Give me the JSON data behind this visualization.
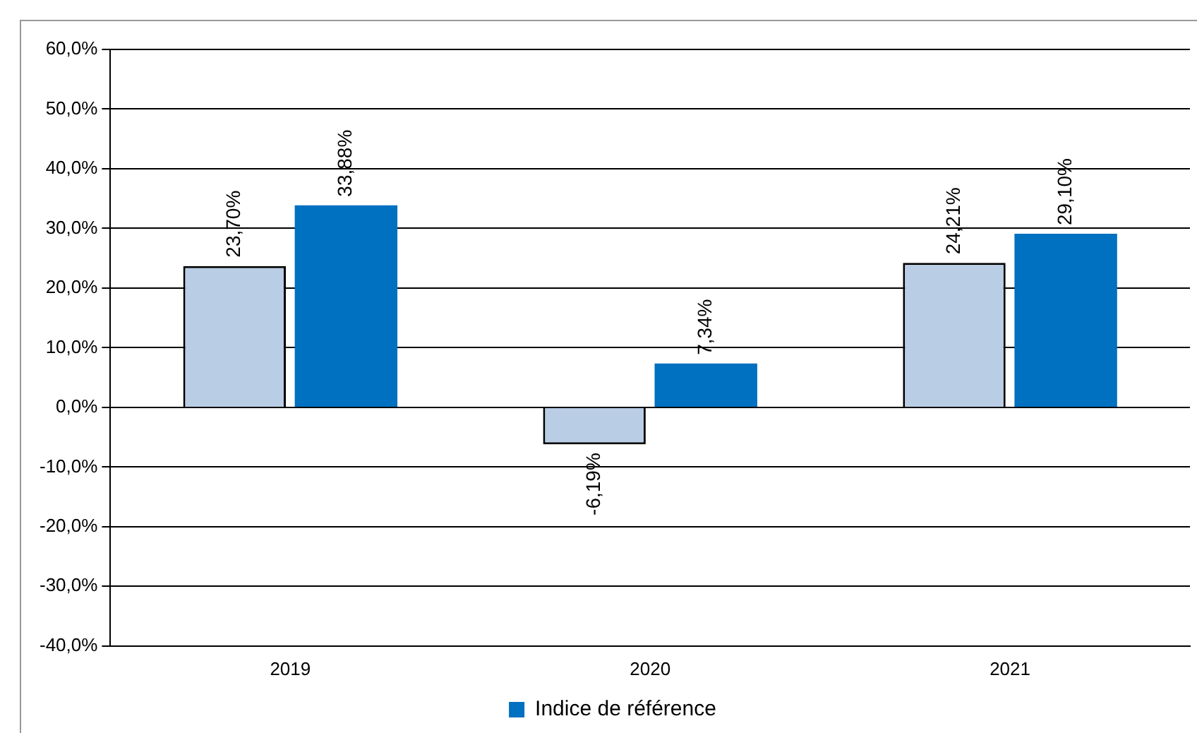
{
  "chart_data": {
    "type": "bar",
    "categories": [
      "2019",
      "2020",
      "2021"
    ],
    "series": [
      {
        "color": "#b9cde5",
        "values": [
          23.7,
          -6.19,
          24.21
        ],
        "value_labels": [
          "23,70%",
          "-6,19%",
          "24,21%"
        ]
      },
      {
        "name": "Indice de référence",
        "color": "#0070c0",
        "values": [
          33.88,
          7.34,
          29.1
        ],
        "value_labels": [
          "33,88%",
          "7,34%",
          "29,10%"
        ]
      }
    ],
    "ylim": [
      -40,
      60
    ],
    "yticks": [
      {
        "value": -40,
        "label": "-40,0%"
      },
      {
        "value": -30,
        "label": "-30,0%"
      },
      {
        "value": -20,
        "label": "-20,0%"
      },
      {
        "value": -10,
        "label": "-10,0%"
      },
      {
        "value": 0,
        "label": "0,0%"
      },
      {
        "value": 10,
        "label": "10,0%"
      },
      {
        "value": 20,
        "label": "20,0%"
      },
      {
        "value": 30,
        "label": "30,0%"
      },
      {
        "value": 40,
        "label": "40,0%"
      },
      {
        "value": 50,
        "label": "50,0%"
      },
      {
        "value": 60,
        "label": "60,0%"
      }
    ],
    "grid": "y",
    "legend": "bottom"
  }
}
